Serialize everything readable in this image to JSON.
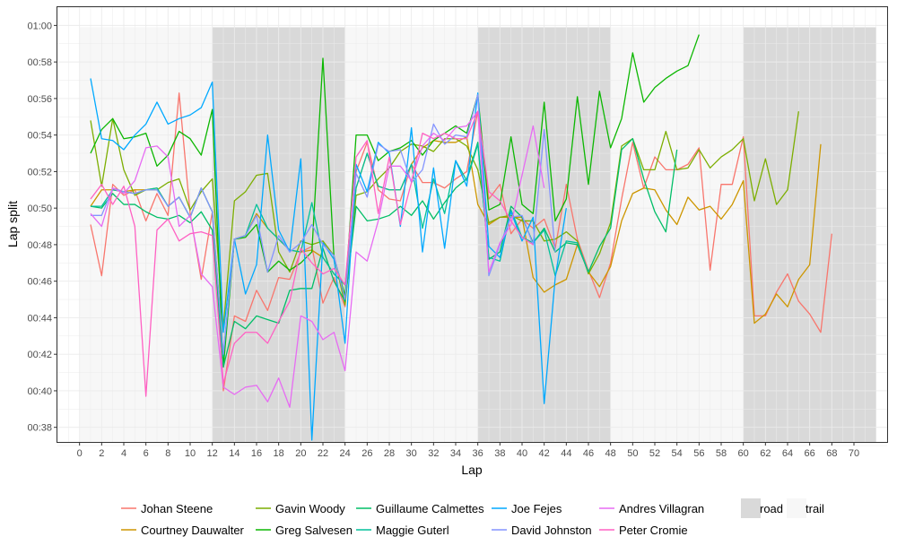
{
  "chart_data": {
    "type": "line",
    "title": "",
    "xlabel": "Lap",
    "ylabel": "Lap split",
    "xlim": [
      -2,
      73
    ],
    "ylim": [
      37.2,
      61
    ],
    "x_ticks": [
      0,
      2,
      4,
      6,
      8,
      10,
      12,
      14,
      16,
      18,
      20,
      22,
      24,
      26,
      28,
      30,
      32,
      34,
      36,
      38,
      40,
      42,
      44,
      46,
      48,
      50,
      52,
      54,
      56,
      58,
      60,
      62,
      64,
      66,
      68,
      70
    ],
    "y_ticks": [
      38,
      40,
      42,
      44,
      46,
      48,
      50,
      52,
      54,
      56,
      58,
      60
    ],
    "y_tick_labels": [
      "00:38",
      "00:40",
      "00:42",
      "00:44",
      "00:46",
      "00:48",
      "00:50",
      "00:52",
      "00:54",
      "00:56",
      "00:58",
      "01:00"
    ],
    "y_unit": "minutes (mm:ss)",
    "grid": true,
    "legend_position": "bottom",
    "background_bands": [
      {
        "type": "trail",
        "x_start": 0,
        "x_end": 12,
        "color": "#f7f7f7"
      },
      {
        "type": "road",
        "x_start": 12,
        "x_end": 24,
        "color": "#d9d9d9"
      },
      {
        "type": "trail",
        "x_start": 24,
        "x_end": 36,
        "color": "#f7f7f7"
      },
      {
        "type": "road",
        "x_start": 36,
        "x_end": 48,
        "color": "#d9d9d9"
      },
      {
        "type": "trail",
        "x_start": 48,
        "x_end": 60,
        "color": "#f7f7f7"
      },
      {
        "type": "road",
        "x_start": 60,
        "x_end": 72,
        "color": "#d9d9d9"
      }
    ],
    "band_y_range": [
      37.2,
      59.9
    ],
    "band_legend": [
      {
        "label": "road",
        "color": "#d9d9d9"
      },
      {
        "label": "trail",
        "color": "#f7f7f7"
      }
    ],
    "series": [
      {
        "name": "Johan Steene",
        "color": "#F8766D",
        "x_start": 1,
        "values": [
          49.1,
          46.3,
          51.3,
          50.7,
          51.0,
          49.3,
          50.8,
          49.6,
          56.3,
          49.7,
          46.1,
          49.8,
          40.0,
          44.1,
          43.8,
          45.5,
          44.4,
          46.2,
          46.1,
          47.6,
          47.9,
          44.8,
          46.2,
          44.6,
          52.0,
          53.6,
          51.0,
          50.5,
          50.4,
          52.4,
          51.4,
          51.4,
          51.1,
          51.6,
          52.0,
          55.3,
          50.5,
          51.3,
          48.6,
          49.4,
          48.9,
          49.4,
          47.8,
          51.3,
          48.3,
          46.6,
          45.1,
          47.0,
          50.5,
          53.6,
          51.1,
          52.8,
          52.1,
          52.1,
          52.4,
          53.3,
          46.6,
          51.3,
          51.3,
          53.9,
          44.1,
          44.1,
          45.4,
          46.4,
          44.9,
          44.2,
          43.2,
          48.6
        ]
      },
      {
        "name": "Courtney Dauwalter",
        "color": "#CD9600",
        "x_start": 1,
        "values": [
          50.1,
          51.0,
          51.0,
          50.9,
          51.0,
          51.0,
          51.1,
          50.1,
          50.6,
          49.5,
          51.1,
          49.8,
          41.9,
          48.3,
          48.5,
          49.7,
          48.9,
          48.3,
          47.7,
          47.6,
          47.7,
          47.3,
          46.4,
          45.8,
          51.1,
          53.0,
          51.2,
          51.0,
          51.0,
          52.4,
          53.3,
          53.7,
          53.6,
          53.6,
          53.9,
          50.2,
          49.1,
          49.5,
          49.5,
          49.5,
          46.2,
          45.4,
          45.8,
          46.1,
          48.0,
          46.5,
          45.7,
          46.8,
          49.3,
          50.8,
          51.1,
          51.0,
          49.9,
          49.1,
          50.6,
          49.9,
          50.1,
          49.4,
          50.2,
          51.5,
          43.7,
          44.2,
          45.3,
          44.6,
          46.1,
          46.9,
          53.5
        ]
      },
      {
        "name": "Gavin Woody",
        "color": "#7CAE00",
        "x_start": 1,
        "values": [
          54.8,
          51.2,
          54.9,
          52.1,
          50.7,
          51.0,
          51.0,
          51.4,
          51.6,
          49.9,
          50.9,
          51.6,
          43.5,
          50.4,
          50.9,
          51.8,
          51.9,
          47.6,
          46.5,
          48.2,
          48.0,
          48.2,
          47.4,
          44.7,
          50.7,
          50.9,
          51.6,
          52.2,
          53.1,
          53.5,
          53.4,
          53.1,
          53.8,
          53.8,
          53.4,
          52.1,
          49.2,
          49.5,
          49.6,
          49.3,
          49.3,
          48.2,
          48.3,
          48.7,
          48.2,
          46.4,
          47.5,
          49.2,
          53.4,
          53.8,
          52.1,
          52.1,
          54.2,
          52.1,
          52.2,
          53.2,
          52.2,
          52.8,
          53.2,
          53.8,
          50.4,
          52.7,
          50.2,
          51.0,
          55.3
        ]
      },
      {
        "name": "Greg Salvesen",
        "color": "#0CB702",
        "x_start": 1,
        "values": [
          53.0,
          54.3,
          54.9,
          53.8,
          53.9,
          54.1,
          52.3,
          52.9,
          54.2,
          53.8,
          52.9,
          55.4,
          41.3,
          48.3,
          48.4,
          49.1,
          46.5,
          47.1,
          46.6,
          47.0,
          47.6,
          58.2,
          47.3,
          45.2,
          54.0,
          54.0,
          52.6,
          53.1,
          53.3,
          53.7,
          52.9,
          53.7,
          54.1,
          54.5,
          54.1,
          56.2,
          49.9,
          50.2,
          53.9,
          50.2,
          49.7,
          55.8,
          49.3,
          50.5,
          56.1,
          51.3,
          56.4,
          53.3,
          54.9,
          58.5,
          55.8,
          56.6,
          57.1,
          57.5,
          57.8,
          59.5
        ]
      },
      {
        "name": "Guillaume Calmettes",
        "color": "#00BE67",
        "x_start": 1,
        "values": [
          50.1,
          50.0,
          50.8,
          50.2,
          50.2,
          49.8,
          49.5,
          49.4,
          49.6,
          49.2,
          49.8,
          48.8,
          41.3,
          43.8,
          43.4,
          44.1,
          43.9,
          43.7,
          45.5,
          45.6,
          45.6,
          47.8,
          46.0,
          44.9,
          50.1,
          49.3,
          49.4,
          49.6,
          50.1,
          49.6,
          50.4,
          49.4,
          50.3,
          51.1,
          51.6,
          53.6,
          47.2,
          47.6,
          50.1,
          49.5,
          48.1,
          48.9,
          47.6,
          48.1,
          48.0,
          46.5,
          47.9,
          48.9,
          53.2,
          53.8,
          51.6,
          49.8,
          48.7,
          53.2
        ]
      },
      {
        "name": "Maggie Guterl",
        "color": "#00C19A",
        "x_start": 1,
        "values": [
          50.1,
          50.1,
          51.0,
          50.9,
          50.8,
          51.0,
          51.1,
          50.1,
          50.6,
          49.5,
          51.1,
          49.8,
          41.9,
          48.3,
          48.5,
          50.2,
          48.9,
          48.3,
          47.7,
          47.6,
          50.3,
          47.3,
          46.4,
          45.8,
          51.1,
          53.0,
          51.2,
          51.0,
          51.0,
          52.4,
          48.9,
          51.6,
          49.7,
          52.6,
          51.5,
          53.5,
          47.3,
          47.1,
          49.9,
          48.4,
          48.1,
          48.8,
          46.3,
          48.2,
          48.1,
          46.5
        ]
      },
      {
        "name": "Joe Fejes",
        "color": "#00A9FF",
        "x_start": 1,
        "values": [
          57.1,
          53.8,
          53.7,
          53.2,
          54.0,
          54.6,
          55.8,
          54.6,
          54.9,
          55.1,
          55.5,
          56.9,
          43.2,
          48.3,
          45.3,
          46.9,
          54.0,
          48.8,
          47.6,
          52.7,
          37.3,
          48.1,
          47.2,
          42.6,
          52.4,
          50.9,
          53.6,
          53.0,
          49.0,
          54.4,
          47.6,
          52.2,
          47.8,
          52.6,
          51.2,
          56.3,
          47.9,
          47.3,
          49.8,
          48.2,
          49.5,
          39.3,
          46.2,
          50.0
        ]
      },
      {
        "name": "David Johnston",
        "color": "#8494FF",
        "x_start": 1,
        "values": [
          49.6,
          49.6,
          51.1,
          50.9,
          50.8,
          51.0,
          51.0,
          50.1,
          50.6,
          49.5,
          51.1,
          49.8,
          42.0,
          48.3,
          48.5,
          49.6,
          46.5,
          48.5,
          47.6,
          48.1,
          49.1,
          48.0,
          47.4,
          45.0,
          51.9,
          50.6,
          53.5,
          53.1,
          53.2,
          51.4,
          52.1,
          54.6,
          53.5,
          54.0,
          53.9,
          56.2,
          46.3,
          48.0,
          49.5,
          49.6,
          48.0,
          54.3,
          47.6
        ]
      },
      {
        "name": "Andres Villagran",
        "color": "#E76BF3",
        "x_start": 1,
        "values": [
          49.7,
          49.0,
          51.1,
          50.8,
          51.5,
          53.3,
          53.4,
          52.8,
          49.0,
          49.6,
          46.4,
          45.7,
          40.2,
          39.8,
          40.2,
          40.3,
          39.4,
          40.7,
          39.1,
          44.1,
          43.8,
          42.8,
          43.2,
          41.1,
          47.6,
          47.1,
          49.3,
          52.3,
          52.3,
          51.5,
          53.4,
          54.1,
          53.7,
          54.4,
          54.5,
          55.3,
          46.5,
          48.1,
          49.1,
          51.8,
          54.5,
          51.1
        ]
      },
      {
        "name": "Peter Cromie",
        "color": "#FF61C3",
        "x_start": 1,
        "values": [
          50.5,
          51.3,
          50.2,
          51.2,
          49.0,
          39.7,
          48.8,
          49.4,
          48.2,
          48.6,
          48.7,
          48.5,
          40.4,
          42.6,
          43.2,
          43.2,
          42.6,
          43.8,
          44.9,
          47.8,
          47.0,
          46.4,
          46.7,
          45.8,
          52.8,
          53.7,
          49.7,
          52.8,
          49.1,
          51.4,
          54.1,
          53.8,
          54.1,
          53.8,
          53.8,
          55.3,
          50.9,
          50.4,
          49.3,
          48.4,
          48.0
        ]
      }
    ]
  }
}
